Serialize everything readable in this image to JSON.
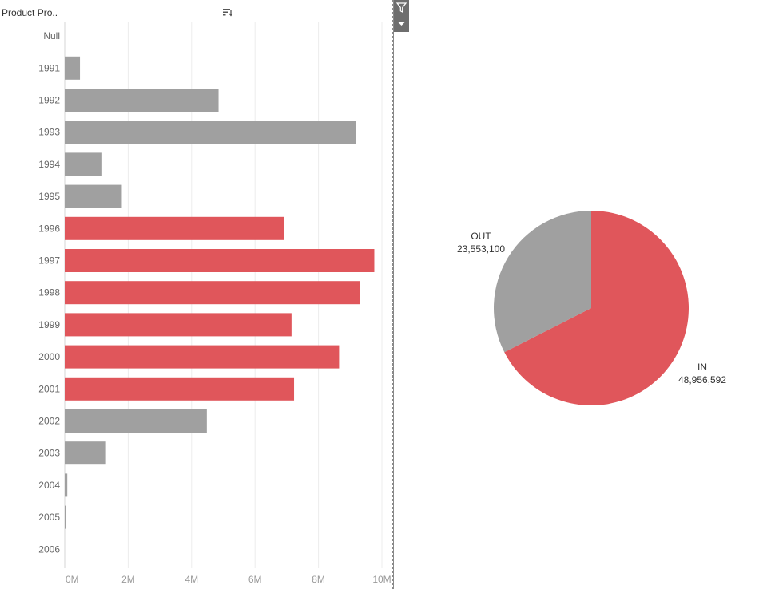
{
  "header": {
    "field_label": "Product Pro..",
    "sort_icon": "sort-descending-icon",
    "filter_icon": "filter-icon",
    "dropdown_icon": "caret-down-icon"
  },
  "colors": {
    "highlight": "#e0565b",
    "default": "#a0a0a0",
    "grid": "#ececec",
    "tick_text": "#9a9a9a",
    "category_text": "#666666"
  },
  "chart_data": [
    {
      "type": "bar",
      "orientation": "horizontal",
      "categories": [
        "Null",
        "1991",
        "1992",
        "1993",
        "1994",
        "1995",
        "1996",
        "1997",
        "1998",
        "1999",
        "2000",
        "2001",
        "2002",
        "2003",
        "2004",
        "2005",
        "2006"
      ],
      "values": [
        0,
        480000,
        4850000,
        9180000,
        1180000,
        1800000,
        6920000,
        9760000,
        9300000,
        7150000,
        8650000,
        7230000,
        4480000,
        1300000,
        80000,
        30000,
        0
      ],
      "highlighted": [
        false,
        false,
        false,
        false,
        false,
        false,
        true,
        true,
        true,
        true,
        true,
        true,
        false,
        false,
        false,
        false,
        false
      ],
      "xlim": [
        0,
        10000000
      ],
      "x_ticks": [
        0,
        2000000,
        4000000,
        6000000,
        8000000,
        10000000
      ],
      "x_tick_labels": [
        "0M",
        "2M",
        "4M",
        "6M",
        "8M",
        "10M"
      ],
      "grid": true,
      "xlabel": "",
      "ylabel": ""
    },
    {
      "type": "pie",
      "slices": [
        {
          "label": "IN",
          "value": 48956592,
          "value_text": "48,956,592",
          "color": "#e0565b"
        },
        {
          "label": "OUT",
          "value": 23553100,
          "value_text": "23,553,100",
          "color": "#a0a0a0"
        }
      ]
    }
  ]
}
